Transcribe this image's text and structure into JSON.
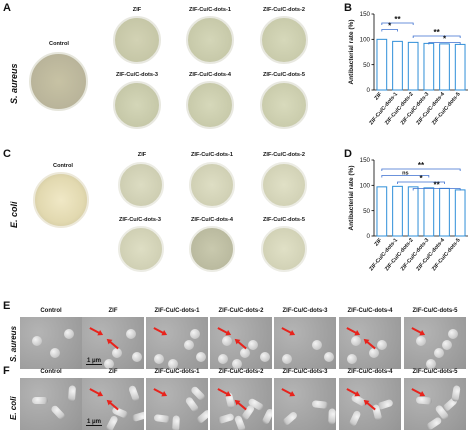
{
  "panels": {
    "A": "A",
    "B": "B",
    "C": "C",
    "D": "D",
    "E": "E",
    "F": "F"
  },
  "organisms": {
    "s_aureus": "S. aureus",
    "e_coli": "E. coli"
  },
  "samples": {
    "control": "Control",
    "zif": "ZIF",
    "d1": "ZIF-Cu/C-dots-1",
    "d2": "ZIF-Cu/C-dots-2",
    "d3": "ZIF-Cu/C-dots-3",
    "d4": "ZIF-Cu/C-dots-4",
    "d5": "ZIF-Cu/C-dots-5"
  },
  "scale_bar": "1 μm",
  "colors": {
    "bar_edge": "#2f8fd8",
    "bracket": "#3b6fd0",
    "arrow": "#e8231c",
    "agar": "#d8d8b4",
    "sem_bg": "#a6a6a6"
  },
  "chart_data": [
    {
      "panel": "B",
      "type": "bar",
      "ylabel": "Antibacterial rate (%)",
      "ylim": [
        0,
        150
      ],
      "yticks": [
        0,
        50,
        100,
        150
      ],
      "categories": [
        "ZIF",
        "ZIF-Cu/C-dots-1",
        "ZIF-Cu/C-dots-2",
        "ZIF-Cu/C-dots-3",
        "ZIF-Cu/C-dots-4",
        "ZIF-Cu/C-dots-5"
      ],
      "values": [
        100,
        96,
        94,
        92,
        91,
        90
      ],
      "annotations": [
        {
          "from": 0,
          "to": 2,
          "label": "**"
        },
        {
          "from": 0,
          "to": 1,
          "label": "*"
        },
        {
          "from": 2,
          "to": 5,
          "label": "**"
        },
        {
          "from": 3,
          "to": 5,
          "label": "*"
        }
      ]
    },
    {
      "panel": "D",
      "type": "bar",
      "ylabel": "Antibacterial rate (%)",
      "ylim": [
        0,
        150
      ],
      "yticks": [
        0,
        50,
        100,
        150
      ],
      "categories": [
        "ZIF",
        "ZIF-Cu/C-dots-1",
        "ZIF-Cu/C-dots-2",
        "ZIF-Cu/C-dots-3",
        "ZIF-Cu/C-dots-4",
        "ZIF-Cu/C-dots-5"
      ],
      "values": [
        97,
        98,
        97,
        95,
        94,
        91
      ],
      "annotations": [
        {
          "from": 0,
          "to": 5,
          "label": "**"
        },
        {
          "from": 0,
          "to": 3,
          "label": "ns"
        },
        {
          "from": 1,
          "to": 4,
          "label": "*"
        },
        {
          "from": 2,
          "to": 5,
          "label": "**"
        }
      ]
    }
  ]
}
